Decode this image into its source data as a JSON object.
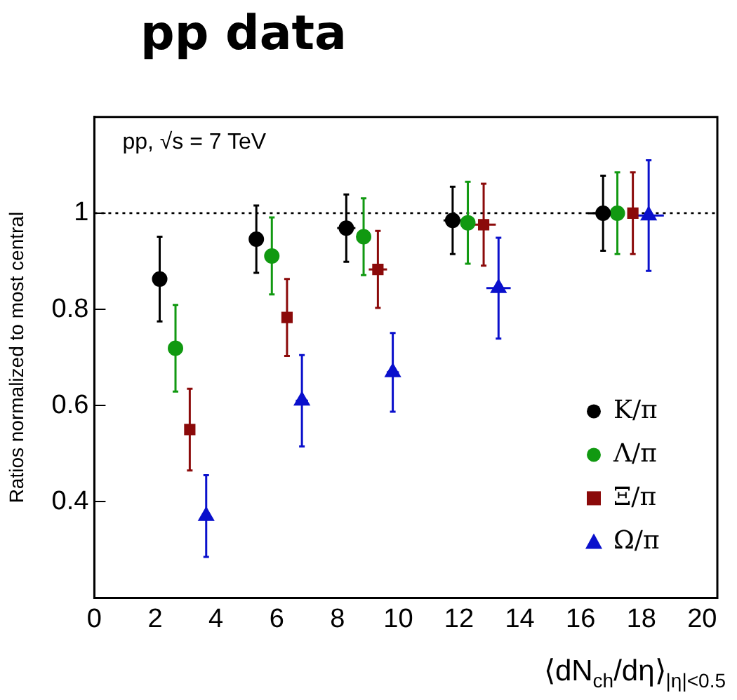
{
  "chart_data": {
    "type": "scatter",
    "title": "pp data",
    "xlabel": "⟨dN$_{ch}$/dη⟩$_{|η|<0.5}$",
    "ylabel": "Ratios normalized to most central",
    "annotations": [
      "pp, √s = 7 TeV"
    ],
    "xlim": [
      0,
      20.5
    ],
    "xticks": [
      0,
      2,
      4,
      6,
      8,
      10,
      12,
      14,
      16,
      18,
      20
    ],
    "ylim": [
      0.2,
      1.2
    ],
    "yticks": [
      0.4,
      0.6,
      0.8,
      1
    ],
    "grid": false,
    "legend": "bottom right",
    "ref_lines": [
      {
        "axis": "y",
        "value": 1,
        "line_style": "dotted",
        "color": "#000000"
      }
    ],
    "series": [
      {
        "name": "K/π",
        "color": "#000000",
        "marker": "circle",
        "x": [
          2.15,
          5.33,
          8.29,
          11.79,
          16.74
        ],
        "values": [
          0.863,
          0.946,
          0.969,
          0.985,
          1.0
        ],
        "errors": [
          0.088,
          0.07,
          0.07,
          0.07,
          0.078
        ],
        "xerrors": [
          null,
          null,
          0.3,
          0.3,
          0.5
        ]
      },
      {
        "name": "Λ/π",
        "color": "#119911",
        "marker": "circle",
        "x": [
          2.67,
          5.84,
          8.86,
          12.29,
          17.21
        ],
        "values": [
          0.719,
          0.911,
          0.951,
          0.98,
          1.0
        ],
        "errors": [
          0.09,
          0.08,
          0.08,
          0.085,
          0.085
        ]
      },
      {
        "name": "Ξ/π",
        "color": "#8b0a0a",
        "marker": "square",
        "x": [
          3.14,
          6.34,
          9.33,
          12.81,
          17.72
        ],
        "values": [
          0.55,
          0.783,
          0.883,
          0.976,
          1.0
        ],
        "errors": [
          0.085,
          0.08,
          0.08,
          0.085,
          0.085
        ],
        "xerrors": [
          null,
          null,
          0.3,
          0.4,
          null
        ]
      },
      {
        "name": "Ω/π",
        "color": "#0a10cc",
        "marker": "triangle",
        "x": [
          3.68,
          6.83,
          9.82,
          13.3,
          18.24
        ],
        "values": [
          0.37,
          0.61,
          0.669,
          0.844,
          0.995
        ],
        "errors": [
          0.085,
          0.095,
          0.082,
          0.105,
          0.115
        ],
        "xerrors": [
          null,
          0.2,
          0.2,
          0.4,
          0.5
        ]
      }
    ]
  }
}
